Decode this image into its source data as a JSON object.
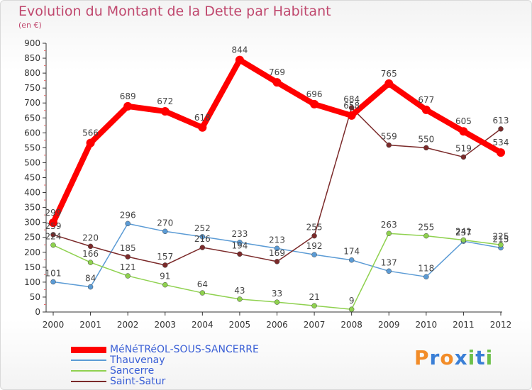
{
  "chart_data": {
    "type": "line",
    "title": "Evolution du Montant de la Dette par Habitant",
    "subtitle": "(en €)",
    "x": [
      "2000",
      "2001",
      "2002",
      "2003",
      "2004",
      "2005",
      "2006",
      "2007",
      "2008",
      "2009",
      "2010",
      "2011",
      "2012"
    ],
    "ylim": [
      0,
      900
    ],
    "yticks": [
      0,
      50,
      100,
      150,
      200,
      250,
      300,
      350,
      400,
      450,
      500,
      550,
      600,
      650,
      700,
      750,
      800,
      850,
      900
    ],
    "grid": false,
    "legend_position": "bottom-left",
    "series": [
      {
        "name": "MéNéTRéOL-SOUS-SANCERRE",
        "color": "#ff0000",
        "values": [
          299,
          566,
          689,
          672,
          618,
          844,
          769,
          696,
          658,
          765,
          677,
          605,
          534
        ]
      },
      {
        "name": "Thauvenay",
        "color": "#5b9bd5",
        "values": [
          101,
          84,
          296,
          270,
          252,
          233,
          213,
          192,
          174,
          137,
          118,
          237,
          215
        ]
      },
      {
        "name": "Sancerre",
        "color": "#8fd14f",
        "values": [
          224,
          166,
          121,
          91,
          64,
          43,
          33,
          21,
          9,
          263,
          255,
          241,
          225
        ]
      },
      {
        "name": "Saint-Satur",
        "color": "#7b2a2a",
        "values": [
          259,
          220,
          185,
          157,
          216,
          194,
          169,
          255,
          684,
          559,
          550,
          519,
          613
        ]
      }
    ]
  },
  "logo": {
    "text": "Proxiti",
    "colors": [
      "#f28c28",
      "#3a7fd6",
      "#f28c28",
      "#3a7fd6",
      "#6cc04a",
      "#3a7fd6",
      "#6cc04a"
    ]
  }
}
